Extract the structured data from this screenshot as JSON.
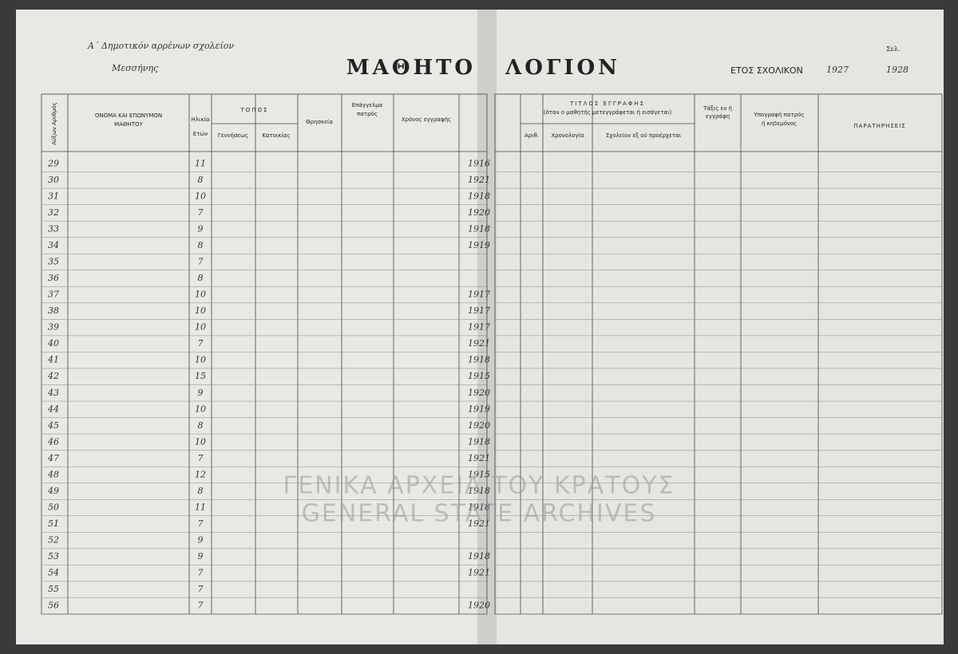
{
  "header": {
    "school": "Α΄ Δημοτικόν αρρένων σχολείον",
    "town": "Μεσσήνης",
    "title_left": "ΜΑΘΗΤΟ",
    "title_right": "ΛΟΓΙΟΝ",
    "year_label": "ΕΤΟΣ ΣΧΟΛΙΚΟΝ",
    "year_from": "1927",
    "year_to": "1928",
    "page_label": "Σελ."
  },
  "columns_left": {
    "number": "Αύξων Αριθμός",
    "name_1": "ΟΝΟΜΑ ΚΑΙ ΕΠΩΝΥΜΟΝ",
    "name_2": "ΜΑΘΗΤΟΥ",
    "age_1": "Ηλικία",
    "age_2": "Ετών",
    "place": "ΤΟΠΟΣ",
    "birth": "Γεννήσεως",
    "residence": "Κατοικίας",
    "religion": "Θρησκεία",
    "job_1": "Επάγγελμα",
    "job_2": "πατρός",
    "enrol": "Χρόνος εγγραφής"
  },
  "columns_right": {
    "title": "ΤΙΤΛΟΣ ΕΓΓΡΑΦΗΣ",
    "note": "(όταν ο μαθητής μετεγγράφεται ή εισάγεται)",
    "num": "Αριθ.",
    "date": "Χρονολογία",
    "school": "Σχολείον εξ ού προέρχεται",
    "class_1": "Τάξις εν ή",
    "class_2": "εγγράφη",
    "sign_1": "Υπογραφή πατρός",
    "sign_2": "ή κηδεμόνος",
    "remarks": "ΠΑΡΑΤΗΡΗΣΕΙΣ"
  },
  "rows": [
    {
      "number": "29",
      "age": "11",
      "year": "1916"
    },
    {
      "number": "30",
      "age": "8",
      "year": "1921"
    },
    {
      "number": "31",
      "age": "10",
      "year": "1918"
    },
    {
      "number": "32",
      "age": "7",
      "year": "1920"
    },
    {
      "number": "33",
      "age": "9",
      "year": "1918"
    },
    {
      "number": "34",
      "age": "8",
      "year": "1919"
    },
    {
      "number": "35",
      "age": "7"
    },
    {
      "number": "36",
      "age": "8"
    },
    {
      "number": "37",
      "age": "10",
      "year": "1917"
    },
    {
      "number": "38",
      "age": "10",
      "year": "1917"
    },
    {
      "number": "39",
      "age": "10",
      "year": "1917"
    },
    {
      "number": "40",
      "age": "7",
      "year": "1921"
    },
    {
      "number": "41",
      "age": "10",
      "year": "1918"
    },
    {
      "number": "42",
      "age": "15",
      "year": "1915"
    },
    {
      "number": "43",
      "age": "9",
      "year": "1920"
    },
    {
      "number": "44",
      "age": "10",
      "year": "1919"
    },
    {
      "number": "45",
      "age": "8",
      "year": "1920"
    },
    {
      "number": "46",
      "age": "10",
      "year": "1918"
    },
    {
      "number": "47",
      "age": "7",
      "year": "1921"
    },
    {
      "number": "48",
      "age": "12",
      "year": "1915"
    },
    {
      "number": "49",
      "age": "8",
      "year": "1918"
    },
    {
      "number": "50",
      "age": "11",
      "year": "1918"
    },
    {
      "number": "51",
      "age": "7",
      "year": "1921"
    },
    {
      "number": "52",
      "age": "9"
    },
    {
      "number": "53",
      "age": "9",
      "year": "1918"
    },
    {
      "number": "54",
      "age": "7",
      "year": "1921"
    },
    {
      "number": "55",
      "age": "7"
    },
    {
      "number": "56",
      "age": "7",
      "year": "1920"
    }
  ],
  "watermark": {
    "greek": "ΓΕΝΙΚΑ ΑΡΧΕΙΑ ΤΟΥ ΚΡΑΤΟΥΣ",
    "latin": "GENERAL STATE ARCHIVES"
  }
}
